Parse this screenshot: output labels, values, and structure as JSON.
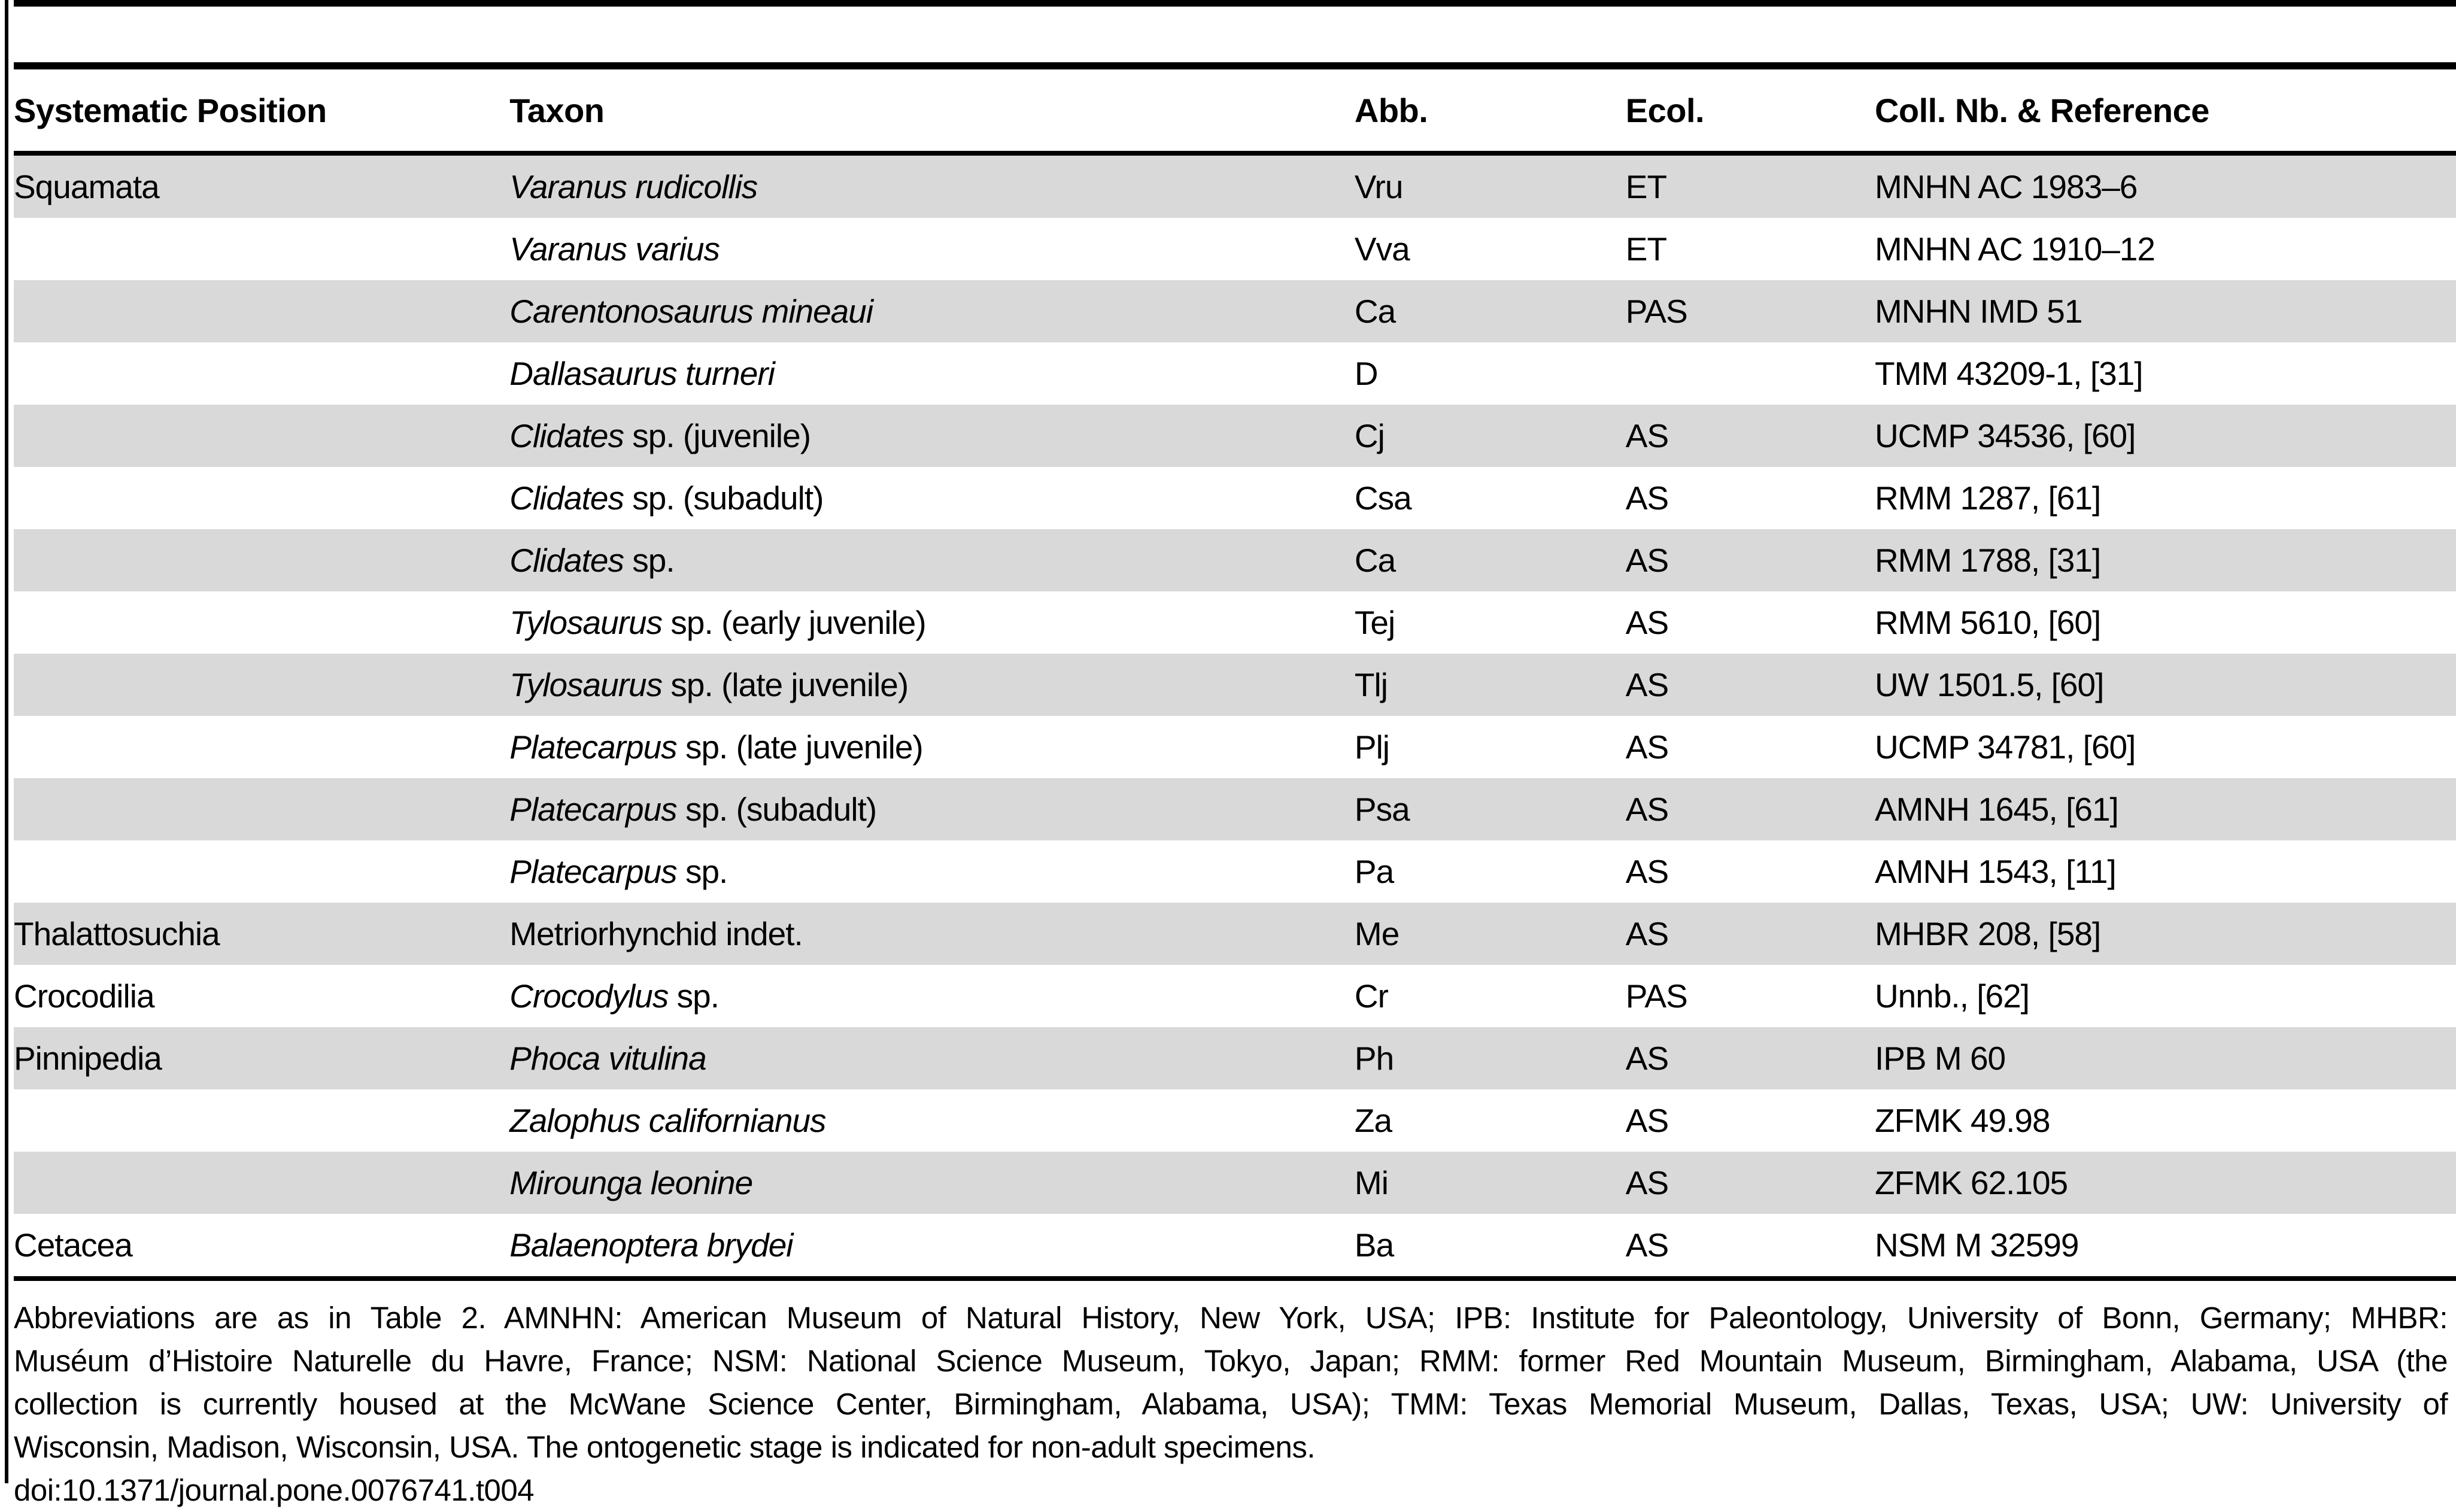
{
  "colors": {
    "background": "#ffffff",
    "row_shaded": "#d9d9d9",
    "rule": "#000000",
    "text": "#000000"
  },
  "table": {
    "columns": [
      "Systematic Position",
      "Taxon",
      "Abb.",
      "Ecol.",
      "Coll. Nb. & Reference"
    ],
    "rows": [
      {
        "position": "Squamata",
        "taxon_italic": "Varanus rudicollis",
        "taxon_rest": "",
        "abb": "Vru",
        "ecol": "ET",
        "coll": "MNHN AC 1983–6"
      },
      {
        "position": "",
        "taxon_italic": "Varanus varius",
        "taxon_rest": "",
        "abb": "Vva",
        "ecol": "ET",
        "coll": "MNHN AC 1910–12"
      },
      {
        "position": "",
        "taxon_italic": "Carentonosaurus mineaui",
        "taxon_rest": "",
        "abb": "Ca",
        "ecol": "PAS",
        "coll": "MNHN IMD 51"
      },
      {
        "position": "",
        "taxon_italic": "Dallasaurus turneri",
        "taxon_rest": "",
        "abb": "D",
        "ecol": "",
        "coll": "TMM 43209-1, [31]"
      },
      {
        "position": "",
        "taxon_italic": "Clidates",
        "taxon_rest": " sp. (juvenile)",
        "abb": "Cj",
        "ecol": "AS",
        "coll": "UCMP 34536, [60]"
      },
      {
        "position": "",
        "taxon_italic": "Clidates",
        "taxon_rest": " sp. (subadult)",
        "abb": "Csa",
        "ecol": "AS",
        "coll": "RMM 1287, [61]"
      },
      {
        "position": "",
        "taxon_italic": "Clidates",
        "taxon_rest": " sp.",
        "abb": "Ca",
        "ecol": "AS",
        "coll": "RMM 1788, [31]"
      },
      {
        "position": "",
        "taxon_italic": "Tylosaurus",
        "taxon_rest": " sp. (early juvenile)",
        "abb": "Tej",
        "ecol": "AS",
        "coll": "RMM 5610, [60]"
      },
      {
        "position": "",
        "taxon_italic": "Tylosaurus",
        "taxon_rest": " sp. (late juvenile)",
        "abb": "Tlj",
        "ecol": "AS",
        "coll": "UW 1501.5, [60]"
      },
      {
        "position": "",
        "taxon_italic": "Platecarpus",
        "taxon_rest": " sp. (late juvenile)",
        "abb": "Plj",
        "ecol": "AS",
        "coll": "UCMP 34781, [60]"
      },
      {
        "position": "",
        "taxon_italic": "Platecarpus",
        "taxon_rest": " sp. (subadult)",
        "abb": "Psa",
        "ecol": "AS",
        "coll": "AMNH 1645, [61]"
      },
      {
        "position": "",
        "taxon_italic": "Platecarpus",
        "taxon_rest": " sp.",
        "abb": "Pa",
        "ecol": "AS",
        "coll": "AMNH 1543, [11]"
      },
      {
        "position": "Thalattosuchia",
        "taxon_italic": "",
        "taxon_rest": "Metriorhynchid indet.",
        "abb": "Me",
        "ecol": "AS",
        "coll": "MHBR 208, [58]"
      },
      {
        "position": "Crocodilia",
        "taxon_italic": "Crocodylus",
        "taxon_rest": " sp.",
        "abb": "Cr",
        "ecol": "PAS",
        "coll": "Unnb., [62]"
      },
      {
        "position": "Pinnipedia",
        "taxon_italic": "Phoca vitulina",
        "taxon_rest": "",
        "abb": "Ph",
        "ecol": "AS",
        "coll": "IPB M 60"
      },
      {
        "position": "",
        "taxon_italic": "Zalophus californianus",
        "taxon_rest": "",
        "abb": "Za",
        "ecol": "AS",
        "coll": "ZFMK 49.98"
      },
      {
        "position": "",
        "taxon_italic": "Mirounga leonine",
        "taxon_rest": "",
        "abb": "Mi",
        "ecol": "AS",
        "coll": "ZFMK 62.105"
      },
      {
        "position": "Cetacea",
        "taxon_italic": "Balaenoptera brydei",
        "taxon_rest": "",
        "abb": "Ba",
        "ecol": "AS",
        "coll": "NSM M 32599"
      }
    ]
  },
  "footer": {
    "lines": [
      "Abbreviations are as in Table 2. AMNHN: American Museum of Natural History, New York, USA; IPB: Institute for Paleontology, University of Bonn, Germany; MHBR:",
      "Muséum d’Histoire Naturelle du Havre, France; NSM: National Science Museum, Tokyo, Japan; RMM: former Red Mountain Museum, Birmingham, Alabama, USA (the",
      "collection is currently housed at the McWane Science Center, Birmingham, Alabama, USA); TMM: Texas Memorial Museum, Dallas, Texas, USA; UW: University of",
      "Wisconsin, Madison, Wisconsin, USA. The ontogenetic stage is indicated for non-adult specimens."
    ],
    "doi": "doi:10.1371/journal.pone.0076741.t004"
  }
}
